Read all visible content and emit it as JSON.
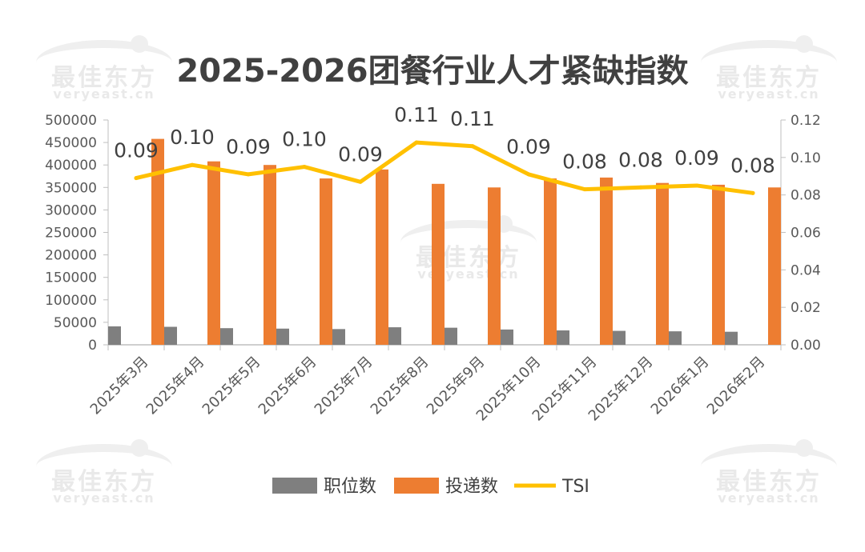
{
  "watermark": {
    "cn": "最佳东方",
    "en": "veryeast.cn"
  },
  "chart_data": {
    "type": "bar",
    "title": "2025-2026团餐行业人才紧缺指数",
    "categories": [
      "2025年3月",
      "2025年4月",
      "2025年5月",
      "2025年6月",
      "2025年7月",
      "2025年8月",
      "2025年9月",
      "2025年10月",
      "2025年11月",
      "2025年12月",
      "2026年1月",
      "2026年2月"
    ],
    "series": [
      {
        "name": "职位数",
        "kind": "bar",
        "axis": "left",
        "color": "#7f7f7f",
        "values": [
          41000,
          40000,
          37000,
          36000,
          35000,
          39000,
          38000,
          34000,
          32000,
          31000,
          30000,
          29000
        ]
      },
      {
        "name": "投递数",
        "kind": "bar",
        "axis": "left",
        "color": "#ed7d31",
        "values": [
          458000,
          408000,
          400000,
          370000,
          390000,
          358000,
          350000,
          370000,
          372000,
          360000,
          356000,
          350000
        ]
      },
      {
        "name": "TSI",
        "kind": "line",
        "axis": "right",
        "color": "#ffc000",
        "values": [
          0.089,
          0.096,
          0.091,
          0.095,
          0.087,
          0.108,
          0.106,
          0.091,
          0.083,
          0.084,
          0.085,
          0.081
        ],
        "labels": [
          "0.09",
          "0.10",
          "0.09",
          "0.10",
          "0.09",
          "0.11",
          "0.11",
          "0.09",
          "0.08",
          "0.08",
          "0.09",
          "0.08"
        ]
      }
    ],
    "y_left": {
      "min": 0,
      "max": 500000,
      "ticks": [
        "0",
        "50000",
        "100000",
        "150000",
        "200000",
        "250000",
        "300000",
        "350000",
        "400000",
        "450000",
        "500000"
      ]
    },
    "y_right": {
      "min": 0,
      "max": 0.12,
      "ticks": [
        "0.00",
        "0.02",
        "0.04",
        "0.06",
        "0.08",
        "0.10",
        "0.12"
      ]
    },
    "legend": {
      "position": "bottom",
      "items": [
        "职位数",
        "投递数",
        "TSI"
      ]
    },
    "grid": false
  }
}
